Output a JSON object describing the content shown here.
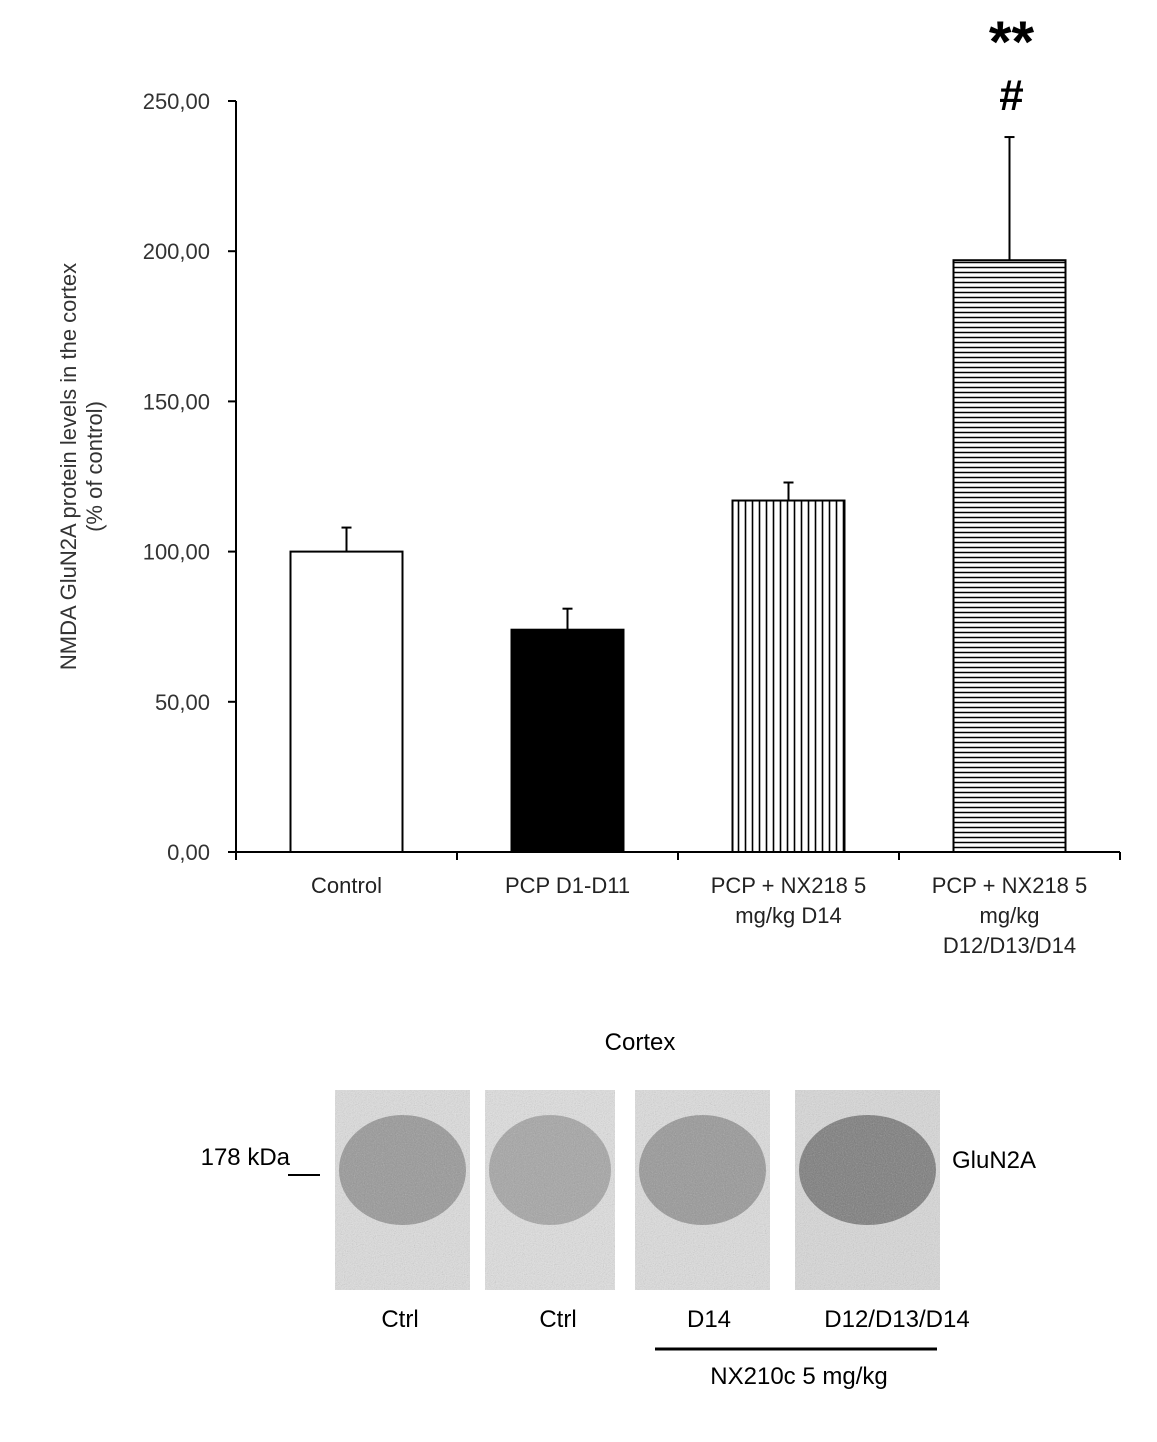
{
  "chart_data": {
    "type": "bar",
    "ylabel_lines": [
      "NMDA GluN2A protein levels in the cortex",
      "(% of control)"
    ],
    "ylim": [
      0,
      250
    ],
    "yticks": [
      0,
      50,
      100,
      150,
      200,
      250
    ],
    "ytick_labels": [
      "0,00",
      "50,00",
      "100,00",
      "150,00",
      "200,00",
      "250,00"
    ],
    "categories": [
      [
        "Control"
      ],
      [
        "PCP D1-D11"
      ],
      [
        "PCP + NX218 5",
        "mg/kg D14"
      ],
      [
        "PCP + NX218 5",
        "mg/kg",
        "D12/D13/D14"
      ]
    ],
    "values": [
      100,
      74,
      117,
      197
    ],
    "errors": [
      8,
      7,
      6,
      41
    ],
    "bar_styles": [
      "white",
      "black",
      "vertical-stripes",
      "horizontal-stripes"
    ],
    "annotations": [
      {
        "category_index": 3,
        "lines": [
          "**",
          "#"
        ]
      }
    ],
    "grid": false,
    "legend": "none"
  },
  "blot": {
    "title": "Cortex",
    "marker_label": "178 kDa",
    "protein_label": "GluN2A",
    "lane_labels": [
      "Ctrl",
      "Ctrl",
      "D14",
      "D12/D13/D14"
    ],
    "lane_intensity": [
      0.55,
      0.4,
      0.55,
      0.85
    ],
    "treatment_label": "NX210c 5 mg/kg"
  }
}
